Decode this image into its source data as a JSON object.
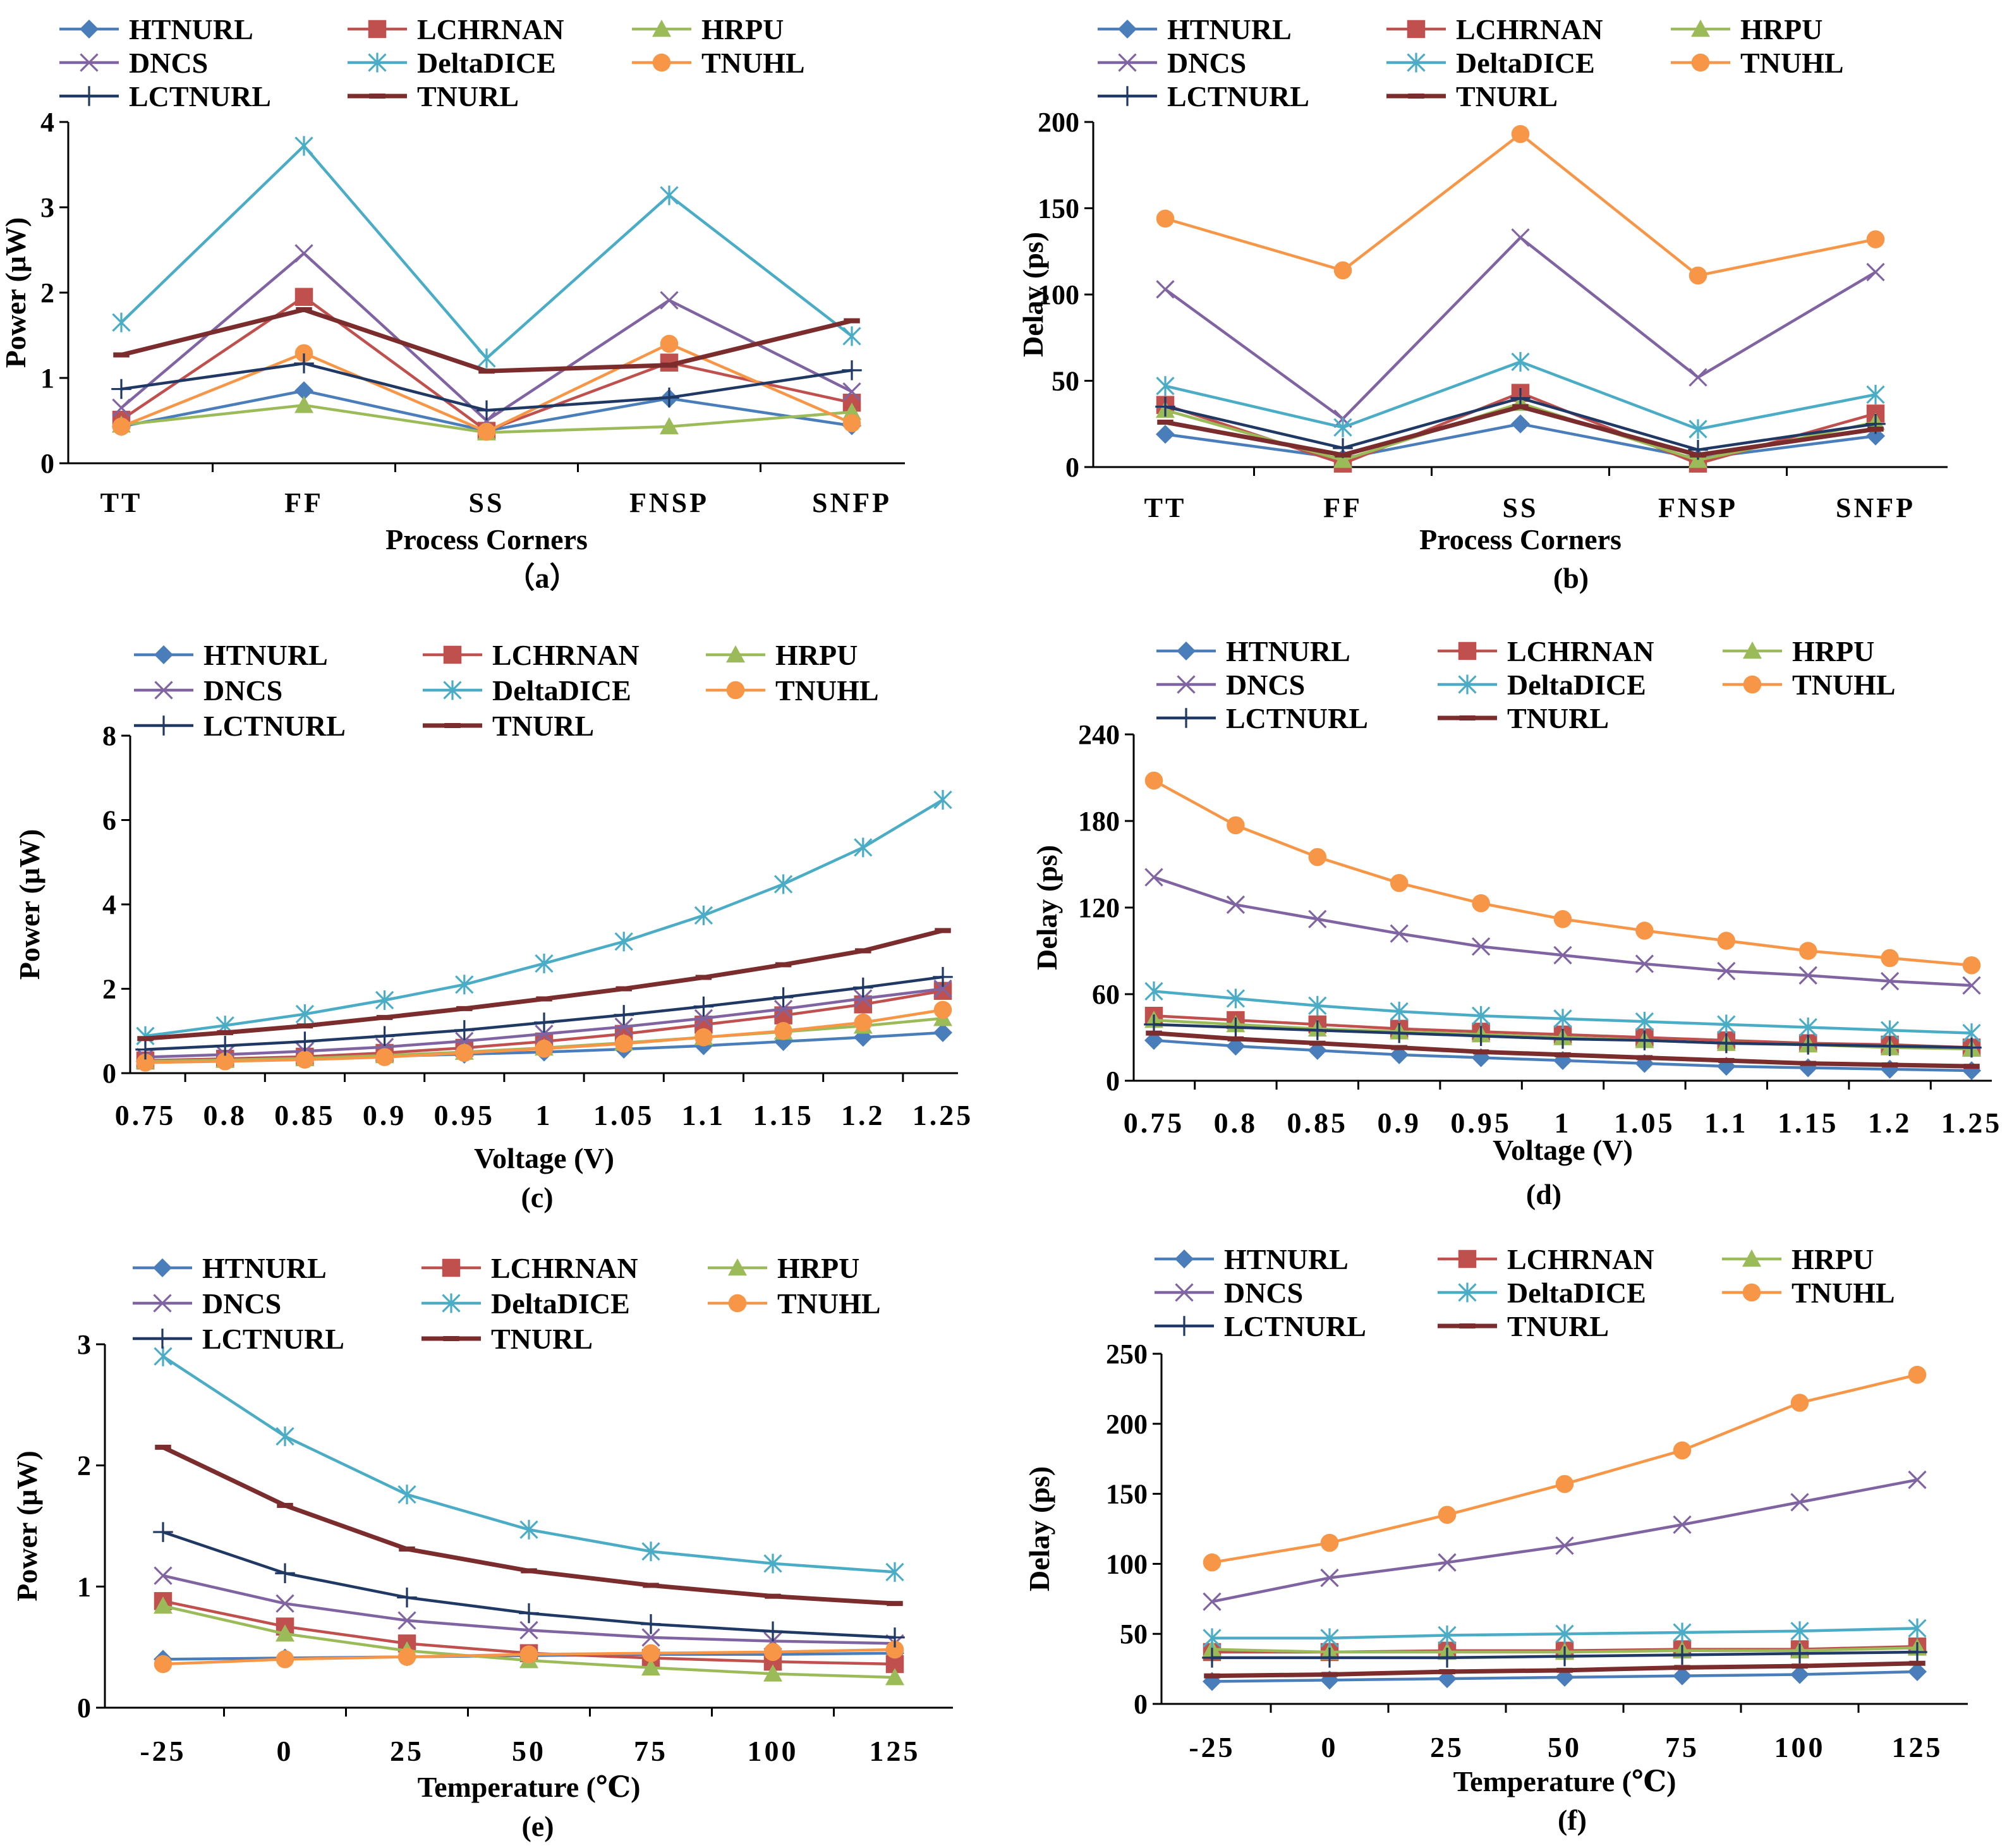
{
  "series_styles": [
    {
      "name": "HTNURL",
      "color": "#4a7ebb",
      "marker": "diamond"
    },
    {
      "name": "LCHRNAN",
      "color": "#c0504d",
      "marker": "square"
    },
    {
      "name": "HRPU",
      "color": "#9bbb59",
      "marker": "triangle"
    },
    {
      "name": "DNCS",
      "color": "#8064a2",
      "marker": "x"
    },
    {
      "name": "DeltaDICE",
      "color": "#4bacc6",
      "marker": "star"
    },
    {
      "name": "TNUHL",
      "color": "#f79646",
      "marker": "circle"
    },
    {
      "name": "LCTNURL",
      "color": "#1f3864",
      "marker": "plus"
    },
    {
      "name": "TNURL",
      "color": "#7b2c2c",
      "marker": "dash"
    }
  ],
  "chart_data": [
    {
      "id": "a",
      "type": "line",
      "caption": "（a）",
      "xlabel": "Process Corners",
      "ylabel": "Power (μW)",
      "categories": [
        "TT",
        "FF",
        "SS",
        "FNSP",
        "SNFP"
      ],
      "ylim": [
        0,
        4
      ],
      "yticks": [
        0,
        1,
        2,
        3,
        4
      ],
      "series": [
        {
          "name": "HTNURL",
          "values": [
            0.43,
            0.85,
            0.38,
            0.76,
            0.44
          ]
        },
        {
          "name": "LCHRNAN",
          "values": [
            0.51,
            1.95,
            0.38,
            1.18,
            0.71
          ]
        },
        {
          "name": "HRPU",
          "values": [
            0.45,
            0.68,
            0.36,
            0.43,
            0.6
          ]
        },
        {
          "name": "DNCS",
          "values": [
            0.65,
            2.46,
            0.5,
            1.91,
            0.84
          ]
        },
        {
          "name": "DeltaDICE",
          "values": [
            1.65,
            3.72,
            1.23,
            3.14,
            1.49
          ]
        },
        {
          "name": "TNUHL",
          "values": [
            0.43,
            1.29,
            0.37,
            1.4,
            0.47
          ]
        },
        {
          "name": "LCTNURL",
          "values": [
            0.87,
            1.17,
            0.62,
            0.77,
            1.09
          ]
        },
        {
          "name": "TNURL",
          "values": [
            1.27,
            1.8,
            1.08,
            1.15,
            1.67
          ]
        }
      ]
    },
    {
      "id": "b",
      "type": "line",
      "caption": "(b)",
      "xlabel": "Process Corners",
      "ylabel": "Delay (ps)",
      "categories": [
        "TT",
        "FF",
        "SS",
        "FNSP",
        "SNFP"
      ],
      "ylim": [
        0,
        200
      ],
      "yticks": [
        0,
        50,
        100,
        150,
        200
      ],
      "series": [
        {
          "name": "HTNURL",
          "values": [
            19,
            5,
            25,
            5,
            18
          ]
        },
        {
          "name": "LCHRNAN",
          "values": [
            36,
            2,
            43,
            2,
            31
          ]
        },
        {
          "name": "HRPU",
          "values": [
            33,
            4,
            37,
            4,
            26
          ]
        },
        {
          "name": "DNCS",
          "values": [
            103,
            28,
            133,
            52,
            113
          ]
        },
        {
          "name": "DeltaDICE",
          "values": [
            47,
            23,
            61,
            22,
            42
          ]
        },
        {
          "name": "TNUHL",
          "values": [
            144,
            114,
            193,
            111,
            132
          ]
        },
        {
          "name": "LCTNURL",
          "values": [
            35,
            11,
            40,
            10,
            25
          ]
        },
        {
          "name": "TNURL",
          "values": [
            26,
            7,
            35,
            7,
            22
          ]
        }
      ]
    },
    {
      "id": "c",
      "type": "line",
      "caption": "(c)",
      "xlabel": "Voltage (V)",
      "ylabel": "Power (μW)",
      "categories": [
        "0.75",
        "0.8",
        "0.85",
        "0.9",
        "0.95",
        "1",
        "1.05",
        "1.1",
        "1.15",
        "1.2",
        "1.25"
      ],
      "ylim": [
        0,
        8
      ],
      "yticks": [
        0,
        2,
        4,
        6,
        8
      ],
      "series": [
        {
          "name": "HTNURL",
          "values": [
            0.28,
            0.31,
            0.34,
            0.4,
            0.45,
            0.5,
            0.57,
            0.65,
            0.75,
            0.85,
            0.96
          ]
        },
        {
          "name": "LCHRNAN",
          "values": [
            0.3,
            0.34,
            0.39,
            0.48,
            0.6,
            0.75,
            0.93,
            1.15,
            1.37,
            1.63,
            1.95
          ]
        },
        {
          "name": "HRPU",
          "values": [
            0.28,
            0.31,
            0.35,
            0.42,
            0.5,
            0.6,
            0.72,
            0.85,
            0.98,
            1.12,
            1.3
          ]
        },
        {
          "name": "DNCS",
          "values": [
            0.38,
            0.44,
            0.52,
            0.62,
            0.76,
            0.93,
            1.1,
            1.3,
            1.52,
            1.77,
            2.0
          ]
        },
        {
          "name": "DeltaDICE",
          "values": [
            0.88,
            1.13,
            1.4,
            1.73,
            2.1,
            2.6,
            3.12,
            3.74,
            4.48,
            5.35,
            6.48
          ]
        },
        {
          "name": "TNUHL",
          "values": [
            0.25,
            0.28,
            0.32,
            0.38,
            0.48,
            0.58,
            0.7,
            0.85,
            1.0,
            1.2,
            1.5
          ]
        },
        {
          "name": "LCTNURL",
          "values": [
            0.56,
            0.65,
            0.75,
            0.88,
            1.02,
            1.2,
            1.38,
            1.58,
            1.8,
            2.03,
            2.28
          ]
        },
        {
          "name": "TNURL",
          "values": [
            0.82,
            0.96,
            1.12,
            1.32,
            1.53,
            1.76,
            2.0,
            2.27,
            2.57,
            2.9,
            3.38
          ]
        }
      ]
    },
    {
      "id": "d",
      "type": "line",
      "caption": "(d)",
      "xlabel": "Voltage (V)",
      "ylabel": "Delay (ps)",
      "categories": [
        "0.75",
        "0.8",
        "0.85",
        "0.9",
        "0.95",
        "1",
        "1.05",
        "1.1",
        "1.15",
        "1.2",
        "1.25"
      ],
      "ylim": [
        0,
        240
      ],
      "yticks": [
        0,
        60,
        120,
        180,
        240
      ],
      "series": [
        {
          "name": "HTNURL",
          "values": [
            28,
            24,
            21,
            18,
            16,
            14,
            12,
            10,
            9,
            8,
            7
          ]
        },
        {
          "name": "LCHRNAN",
          "values": [
            45,
            42,
            39,
            36,
            34,
            32,
            30,
            28,
            26,
            25,
            23
          ]
        },
        {
          "name": "HRPU",
          "values": [
            42,
            39,
            36,
            34,
            32,
            30,
            28,
            26,
            25,
            23,
            22
          ]
        },
        {
          "name": "DNCS",
          "values": [
            141,
            122,
            112,
            102,
            93,
            87,
            81,
            76,
            73,
            69,
            66
          ]
        },
        {
          "name": "DeltaDICE",
          "values": [
            62,
            57,
            52,
            48,
            45,
            43,
            41,
            39,
            37,
            35,
            33
          ]
        },
        {
          "name": "TNUHL",
          "values": [
            208,
            177,
            155,
            137,
            123,
            112,
            104,
            97,
            90,
            85,
            80
          ]
        },
        {
          "name": "LCTNURL",
          "values": [
            39,
            37,
            35,
            33,
            31,
            29,
            28,
            26,
            25,
            24,
            23
          ]
        },
        {
          "name": "TNURL",
          "values": [
            33,
            29,
            26,
            23,
            20,
            18,
            16,
            14,
            12,
            11,
            10
          ]
        }
      ]
    },
    {
      "id": "e",
      "type": "line",
      "caption": "(e)",
      "xlabel": "Temperature (℃)",
      "ylabel": "Power (μW)",
      "categories": [
        "-25",
        "0",
        "25",
        "50",
        "75",
        "100",
        "125"
      ],
      "ylim": [
        0,
        3
      ],
      "yticks": [
        0,
        1,
        2,
        3
      ],
      "series": [
        {
          "name": "HTNURL",
          "values": [
            0.4,
            0.41,
            0.42,
            0.43,
            0.44,
            0.44,
            0.45
          ]
        },
        {
          "name": "LCHRNAN",
          "values": [
            0.88,
            0.67,
            0.53,
            0.45,
            0.41,
            0.38,
            0.36
          ]
        },
        {
          "name": "HRPU",
          "values": [
            0.84,
            0.61,
            0.47,
            0.39,
            0.33,
            0.28,
            0.25
          ]
        },
        {
          "name": "DNCS",
          "values": [
            1.09,
            0.86,
            0.72,
            0.64,
            0.58,
            0.55,
            0.53
          ]
        },
        {
          "name": "DeltaDICE",
          "values": [
            2.9,
            2.24,
            1.76,
            1.47,
            1.29,
            1.19,
            1.12
          ]
        },
        {
          "name": "TNUHL",
          "values": [
            0.36,
            0.4,
            0.42,
            0.44,
            0.45,
            0.46,
            0.48
          ]
        },
        {
          "name": "LCTNURL",
          "values": [
            1.45,
            1.11,
            0.91,
            0.78,
            0.69,
            0.63,
            0.58
          ]
        },
        {
          "name": "TNURL",
          "values": [
            2.15,
            1.67,
            1.31,
            1.13,
            1.01,
            0.92,
            0.86
          ]
        }
      ]
    },
    {
      "id": "f",
      "type": "line",
      "caption": "(f)",
      "xlabel": "Temperature (℃)",
      "ylabel": "Delay (ps)",
      "categories": [
        "-25",
        "0",
        "25",
        "50",
        "75",
        "100",
        "125"
      ],
      "ylim": [
        0,
        250
      ],
      "yticks": [
        0,
        50,
        100,
        150,
        200,
        250
      ],
      "series": [
        {
          "name": "HTNURL",
          "values": [
            16,
            17,
            18,
            19,
            20,
            21,
            23
          ]
        },
        {
          "name": "LCHRNAN",
          "values": [
            37,
            37,
            38,
            38,
            39,
            39,
            41
          ]
        },
        {
          "name": "HRPU",
          "values": [
            39,
            37,
            37,
            37,
            38,
            38,
            40
          ]
        },
        {
          "name": "DNCS",
          "values": [
            73,
            90,
            101,
            113,
            128,
            144,
            160
          ]
        },
        {
          "name": "DeltaDICE",
          "values": [
            47,
            47,
            49,
            50,
            51,
            52,
            54
          ]
        },
        {
          "name": "TNUHL",
          "values": [
            101,
            115,
            135,
            157,
            181,
            215,
            235
          ]
        },
        {
          "name": "LCTNURL",
          "values": [
            33,
            33,
            33,
            34,
            35,
            36,
            37
          ]
        },
        {
          "name": "TNURL",
          "values": [
            20,
            21,
            23,
            24,
            26,
            27,
            29
          ]
        }
      ]
    }
  ]
}
